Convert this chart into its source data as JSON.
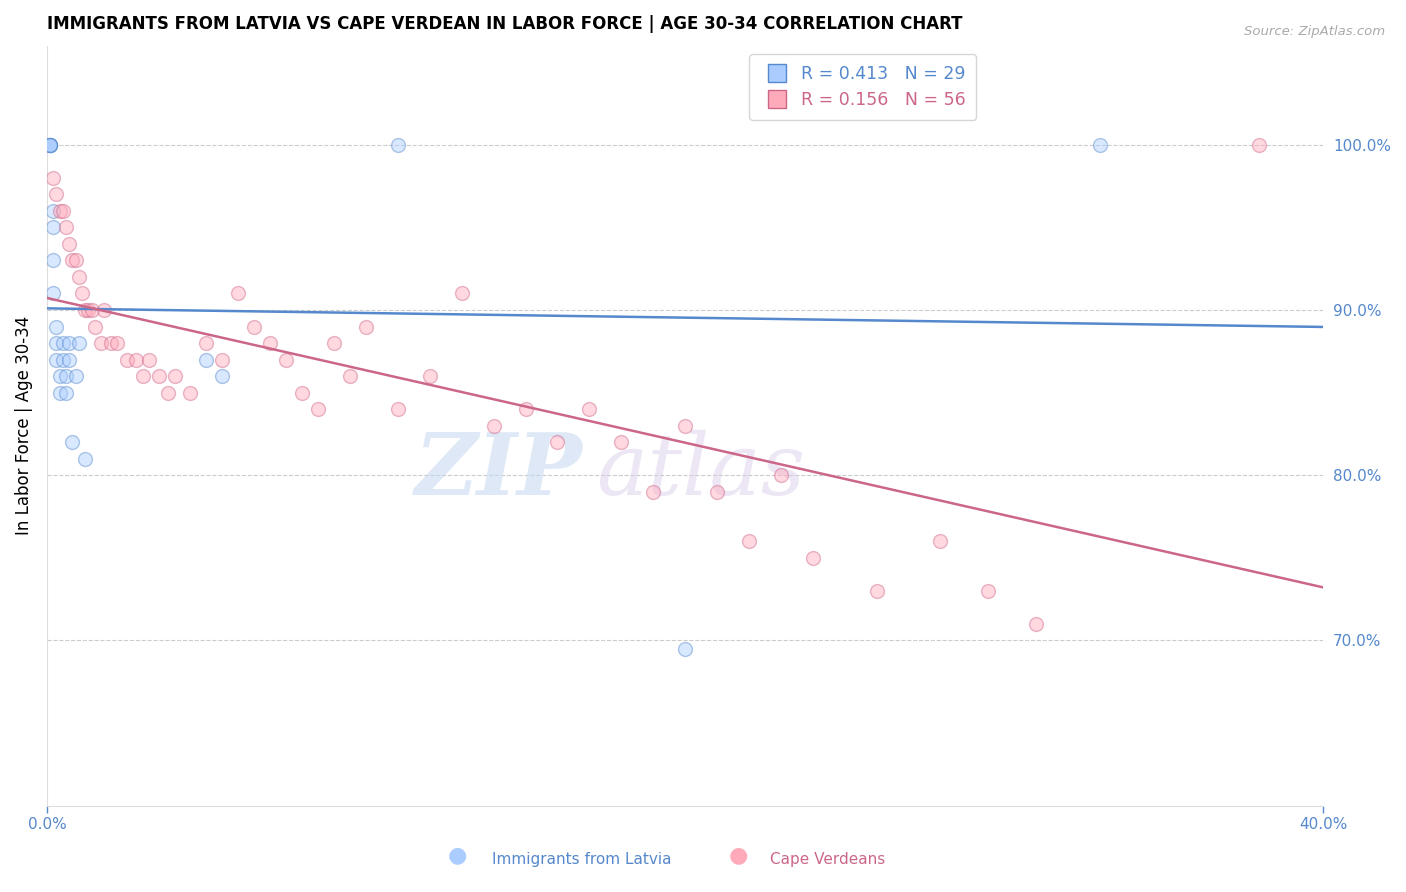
{
  "title": "IMMIGRANTS FROM LATVIA VS CAPE VERDEAN IN LABOR FORCE | AGE 30-34 CORRELATION CHART",
  "source": "Source: ZipAtlas.com",
  "ylabel": "In Labor Force | Age 30-34",
  "right_ytick_labels": [
    "70.0%",
    "80.0%",
    "90.0%",
    "100.0%"
  ],
  "right_yticks": [
    0.7,
    0.8,
    0.9,
    1.0
  ],
  "xlim": [
    0.0,
    0.4
  ],
  "ylim": [
    0.6,
    1.06
  ],
  "xtick_positions": [
    0.0,
    0.4
  ],
  "xtick_labels": [
    "0.0%",
    "40.0%"
  ],
  "grid_color": "#cccccc",
  "background_color": "#ffffff",
  "latvia_color": "#aaccff",
  "latvia_edge": "#5588cc",
  "cv_color": "#ffaabb",
  "cv_edge": "#cc6688",
  "legend_R_latvia": "R = 0.413",
  "legend_N_latvia": "N = 29",
  "legend_R_cv": "R = 0.156",
  "legend_N_cv": "N = 56",
  "watermark_zip": "ZIP",
  "watermark_atlas": "atlas",
  "axis_color": "#5588cc",
  "latvia_scatter_x": [
    0.001,
    0.001,
    0.001,
    0.001,
    0.001,
    0.002,
    0.002,
    0.002,
    0.002,
    0.003,
    0.003,
    0.003,
    0.004,
    0.004,
    0.005,
    0.005,
    0.006,
    0.006,
    0.007,
    0.007,
    0.008,
    0.009,
    0.01,
    0.012,
    0.05,
    0.055,
    0.11,
    0.2,
    0.33
  ],
  "latvia_scatter_y": [
    1.0,
    1.0,
    1.0,
    1.0,
    1.0,
    0.96,
    0.95,
    0.93,
    0.91,
    0.89,
    0.88,
    0.87,
    0.86,
    0.85,
    0.88,
    0.87,
    0.86,
    0.85,
    0.88,
    0.87,
    0.82,
    0.86,
    0.88,
    0.81,
    0.87,
    0.86,
    1.0,
    0.695,
    1.0
  ],
  "cv_scatter_x": [
    0.002,
    0.003,
    0.004,
    0.005,
    0.006,
    0.007,
    0.008,
    0.009,
    0.01,
    0.011,
    0.012,
    0.013,
    0.014,
    0.015,
    0.017,
    0.018,
    0.02,
    0.022,
    0.025,
    0.028,
    0.03,
    0.032,
    0.035,
    0.038,
    0.04,
    0.045,
    0.05,
    0.055,
    0.06,
    0.065,
    0.07,
    0.075,
    0.08,
    0.085,
    0.09,
    0.095,
    0.1,
    0.11,
    0.12,
    0.13,
    0.14,
    0.15,
    0.16,
    0.17,
    0.18,
    0.19,
    0.2,
    0.21,
    0.22,
    0.23,
    0.24,
    0.26,
    0.28,
    0.295,
    0.31,
    0.38
  ],
  "cv_scatter_y": [
    0.98,
    0.97,
    0.96,
    0.96,
    0.95,
    0.94,
    0.93,
    0.93,
    0.92,
    0.91,
    0.9,
    0.9,
    0.9,
    0.89,
    0.88,
    0.9,
    0.88,
    0.88,
    0.87,
    0.87,
    0.86,
    0.87,
    0.86,
    0.85,
    0.86,
    0.85,
    0.88,
    0.87,
    0.91,
    0.89,
    0.88,
    0.87,
    0.85,
    0.84,
    0.88,
    0.86,
    0.89,
    0.84,
    0.86,
    0.91,
    0.83,
    0.84,
    0.82,
    0.84,
    0.82,
    0.79,
    0.83,
    0.79,
    0.76,
    0.8,
    0.75,
    0.73,
    0.76,
    0.73,
    0.71,
    1.0
  ],
  "marker_size": 100,
  "marker_alpha": 0.45,
  "line_width": 1.8
}
